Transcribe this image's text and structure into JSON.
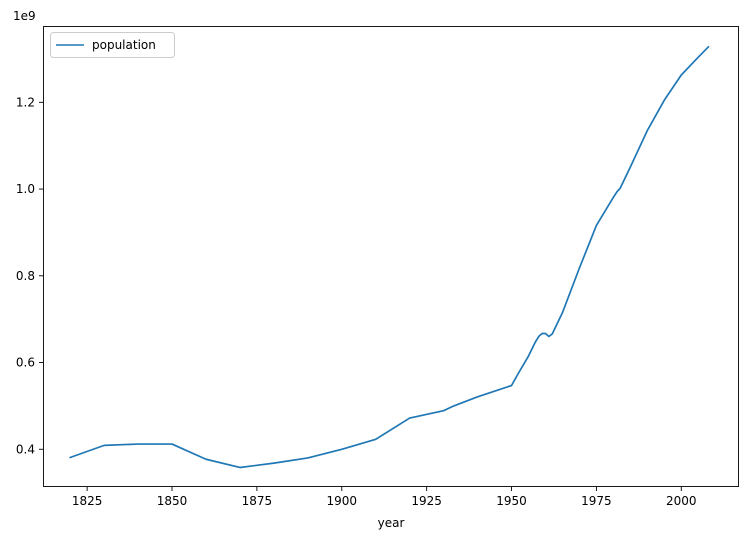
{
  "chart_data": {
    "type": "line",
    "title": "",
    "xlabel": "year",
    "ylabel": "",
    "y_offset_label": "1e9",
    "xlim": [
      1812,
      2017
    ],
    "ylim": [
      313000000,
      1376000000
    ],
    "grid": false,
    "legend": {
      "position": "top-left",
      "entries": [
        "population"
      ]
    },
    "x_ticks": [
      {
        "value": 1825,
        "label": "1825"
      },
      {
        "value": 1850,
        "label": "1850"
      },
      {
        "value": 1875,
        "label": "1875"
      },
      {
        "value": 1900,
        "label": "1900"
      },
      {
        "value": 1925,
        "label": "1925"
      },
      {
        "value": 1950,
        "label": "1950"
      },
      {
        "value": 1975,
        "label": "1975"
      },
      {
        "value": 2000,
        "label": "2000"
      }
    ],
    "y_ticks": [
      {
        "value": 400000000,
        "label": "0.4"
      },
      {
        "value": 600000000,
        "label": "0.6"
      },
      {
        "value": 800000000,
        "label": "0.8"
      },
      {
        "value": 1000000000,
        "label": "1.0"
      },
      {
        "value": 1200000000,
        "label": "1.2"
      }
    ],
    "series": [
      {
        "name": "population",
        "color": "#1f77b4",
        "x": [
          1820,
          1830,
          1840,
          1850,
          1860,
          1870,
          1880,
          1890,
          1900,
          1910,
          1920,
          1930,
          1933,
          1940,
          1950,
          1952,
          1955,
          1957,
          1958,
          1959,
          1960,
          1961,
          1962,
          1965,
          1970,
          1975,
          1980,
          1981,
          1982,
          1985,
          1990,
          1995,
          2000,
          2005,
          2008
        ],
        "values": [
          381000000,
          409000000,
          412000000,
          412000000,
          377000000,
          358000000,
          368000000,
          380000000,
          400000000,
          423000000,
          472000000,
          489000000,
          500000000,
          521000000,
          547000000,
          575000000,
          615000000,
          647000000,
          660000000,
          667000000,
          667000000,
          660000000,
          666000000,
          715000000,
          818000000,
          916000000,
          981000000,
          993000000,
          1002000000,
          1051000000,
          1135000000,
          1205000000,
          1263000000,
          1304000000,
          1328000000
        ]
      }
    ]
  }
}
